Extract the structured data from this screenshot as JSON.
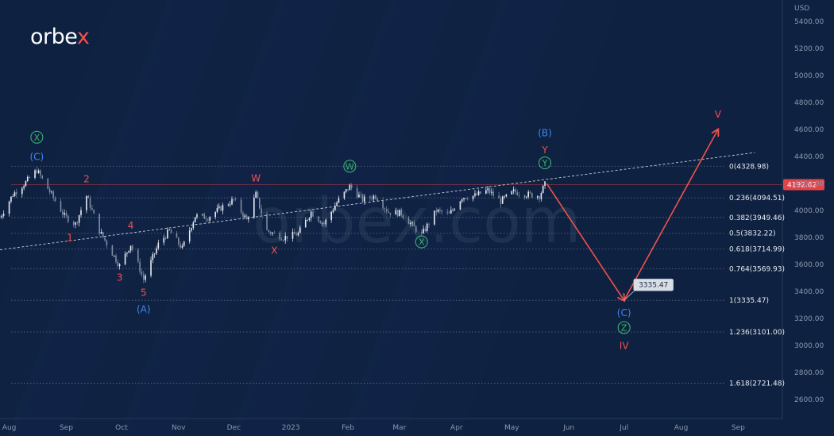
{
  "brand": {
    "name_prefix": "orbe",
    "name_accent": "x",
    "watermark": "orbex.com",
    "accent_color": "#f0524f"
  },
  "colors": {
    "background": "#0f2140",
    "candle_up": "#e9edf4",
    "candle_down": "#7f8ca3",
    "red": "#f0524f",
    "blue": "#3d86f0",
    "green": "#39b36e",
    "fib_line": "#5c6b84",
    "price_tag": "#e2444a"
  },
  "chart_data": {
    "type": "candlestick",
    "currency": "USD",
    "y_axis": {
      "ticks": [
        2600,
        2800,
        3000,
        3200,
        3400,
        3600,
        3800,
        4000,
        4200,
        4400,
        4600,
        4800,
        5000,
        5200,
        5400
      ],
      "tick_labels": [
        "2600.00",
        "2800.00",
        "3000.00",
        "3200.00",
        "3400.00",
        "3600.00",
        "3800.00",
        "4000.00",
        "4200.00",
        "4400.00",
        "4600.00",
        "4800.00",
        "5000.00",
        "5200.00",
        "5400.00"
      ],
      "ylim": [
        2460,
        5560
      ]
    },
    "x_axis": {
      "range": [
        "2022-07-27",
        "2023-09-25"
      ],
      "ticks": [
        {
          "date": "2022-08-01",
          "label": "Aug"
        },
        {
          "date": "2022-09-01",
          "label": "Sep"
        },
        {
          "date": "2022-10-01",
          "label": "Oct"
        },
        {
          "date": "2022-11-01",
          "label": "Nov"
        },
        {
          "date": "2022-12-01",
          "label": "Dec"
        },
        {
          "date": "2023-01-01",
          "label": "2023"
        },
        {
          "date": "2023-02-01",
          "label": "Feb"
        },
        {
          "date": "2023-03-01",
          "label": "Mar"
        },
        {
          "date": "2023-04-01",
          "label": "Apr"
        },
        {
          "date": "2023-05-01",
          "label": "May"
        },
        {
          "date": "2023-06-01",
          "label": "Jun"
        },
        {
          "date": "2023-07-01",
          "label": "Jul"
        },
        {
          "date": "2023-08-01",
          "label": "Aug"
        },
        {
          "date": "2023-09-01",
          "label": "Sep"
        }
      ]
    },
    "price_path": [
      [
        "2022-07-27",
        3950
      ],
      [
        "2022-08-03",
        4120
      ],
      [
        "2022-08-10",
        4210
      ],
      [
        "2022-08-16",
        4300
      ],
      [
        "2022-08-23",
        4140
      ],
      [
        "2022-08-31",
        3960
      ],
      [
        "2022-09-06",
        3900
      ],
      [
        "2022-09-12",
        4110
      ],
      [
        "2022-09-19",
        3850
      ],
      [
        "2022-09-30",
        3590
      ],
      [
        "2022-10-06",
        3750
      ],
      [
        "2022-10-13",
        3490
      ],
      [
        "2022-10-21",
        3750
      ],
      [
        "2022-10-27",
        3850
      ],
      [
        "2022-11-03",
        3720
      ],
      [
        "2022-11-10",
        3960
      ],
      [
        "2022-11-17",
        3950
      ],
      [
        "2022-11-25",
        4030
      ],
      [
        "2022-12-01",
        4080
      ],
      [
        "2022-12-08",
        3930
      ],
      [
        "2022-12-13",
        4120
      ],
      [
        "2022-12-19",
        3850
      ],
      [
        "2022-12-28",
        3800
      ],
      [
        "2023-01-05",
        3830
      ],
      [
        "2023-01-12",
        3990
      ],
      [
        "2023-01-19",
        3900
      ],
      [
        "2023-01-26",
        4060
      ],
      [
        "2023-02-02",
        4180
      ],
      [
        "2023-02-09",
        4080
      ],
      [
        "2023-02-16",
        4110
      ],
      [
        "2023-02-23",
        3990
      ],
      [
        "2023-03-02",
        3980
      ],
      [
        "2023-03-08",
        3890
      ],
      [
        "2023-03-13",
        3820
      ],
      [
        "2023-03-21",
        4000
      ],
      [
        "2023-03-28",
        3970
      ],
      [
        "2023-04-04",
        4100
      ],
      [
        "2023-04-11",
        4110
      ],
      [
        "2023-04-18",
        4150
      ],
      [
        "2023-04-25",
        4070
      ],
      [
        "2023-05-02",
        4140
      ],
      [
        "2023-05-09",
        4120
      ],
      [
        "2023-05-16",
        4110
      ],
      [
        "2023-05-19",
        4192.62
      ]
    ],
    "current_price": {
      "value": 4192.62,
      "label": "4192.62"
    },
    "fibonacci": {
      "start_date": "2023-05-19",
      "levels": [
        {
          "ratio": "0",
          "price": 4328.98,
          "label": "0(4328.98)"
        },
        {
          "ratio": "0.236",
          "price": 4094.51,
          "label": "0.236(4094.51)"
        },
        {
          "ratio": "0.382",
          "price": 3949.46,
          "label": "0.382(3949.46)"
        },
        {
          "ratio": "0.5",
          "price": 3832.22,
          "label": "0.5(3832.22)"
        },
        {
          "ratio": "0.618",
          "price": 3714.99,
          "label": "0.618(3714.99)"
        },
        {
          "ratio": "0.764",
          "price": 3569.93,
          "label": "0.764(3569.93)"
        },
        {
          "ratio": "1",
          "price": 3335.47,
          "label": "1(3335.47)"
        },
        {
          "ratio": "1.236",
          "price": 3101.0,
          "label": "1.236(3101.00)"
        },
        {
          "ratio": "1.618",
          "price": 2721.48,
          "label": "1.618(2721.48)"
        }
      ]
    },
    "trendline": {
      "start": [
        "2022-07-27",
        3710
      ],
      "end": [
        "2023-09-10",
        4430
      ]
    },
    "forecast": {
      "path": [
        [
          "2023-05-20",
          4200
        ],
        [
          "2023-07-01",
          3335.47
        ],
        [
          "2023-08-21",
          4600
        ]
      ],
      "target_label": "3335.47",
      "target_price": 3335.47
    },
    "wave_labels": [
      {
        "text": "X",
        "date": "2022-08-16",
        "price": 4520,
        "color": "green",
        "circled": true
      },
      {
        "text": "(C)",
        "date": "2022-08-16",
        "price": 4375,
        "color": "blue",
        "circled": false
      },
      {
        "text": "1",
        "date": "2022-09-03",
        "price": 3775,
        "color": "red",
        "circled": false
      },
      {
        "text": "2",
        "date": "2022-09-12",
        "price": 4210,
        "color": "red",
        "circled": false
      },
      {
        "text": "3",
        "date": "2022-09-30",
        "price": 3480,
        "color": "red",
        "circled": false
      },
      {
        "text": "4",
        "date": "2022-10-06",
        "price": 3865,
        "color": "red",
        "circled": false
      },
      {
        "text": "5",
        "date": "2022-10-13",
        "price": 3370,
        "color": "red",
        "circled": false
      },
      {
        "text": "(A)",
        "date": "2022-10-13",
        "price": 3245,
        "color": "blue",
        "circled": false
      },
      {
        "text": "W",
        "date": "2022-12-13",
        "price": 4215,
        "color": "red",
        "circled": false
      },
      {
        "text": "X",
        "date": "2022-12-23",
        "price": 3680,
        "color": "red",
        "circled": false
      },
      {
        "text": "W",
        "date": "2023-02-02",
        "price": 4305,
        "color": "green",
        "circled": true
      },
      {
        "text": "X",
        "date": "2023-03-13",
        "price": 3745,
        "color": "green",
        "circled": true
      },
      {
        "text": "(B)",
        "date": "2023-05-19",
        "price": 4550,
        "color": "blue",
        "circled": false
      },
      {
        "text": "Y",
        "date": "2023-05-19",
        "price": 4425,
        "color": "red",
        "circled": false
      },
      {
        "text": "Y",
        "date": "2023-05-19",
        "price": 4330,
        "color": "green",
        "circled": true
      },
      {
        "text": "(C)",
        "date": "2023-07-01",
        "price": 3220,
        "color": "blue",
        "circled": false
      },
      {
        "text": "Z",
        "date": "2023-07-01",
        "price": 3110,
        "color": "green",
        "circled": true
      },
      {
        "text": "IV",
        "date": "2023-07-01",
        "price": 2975,
        "color": "red",
        "circled": false
      },
      {
        "text": "V",
        "date": "2023-08-21",
        "price": 4690,
        "color": "red",
        "circled": false
      }
    ]
  }
}
